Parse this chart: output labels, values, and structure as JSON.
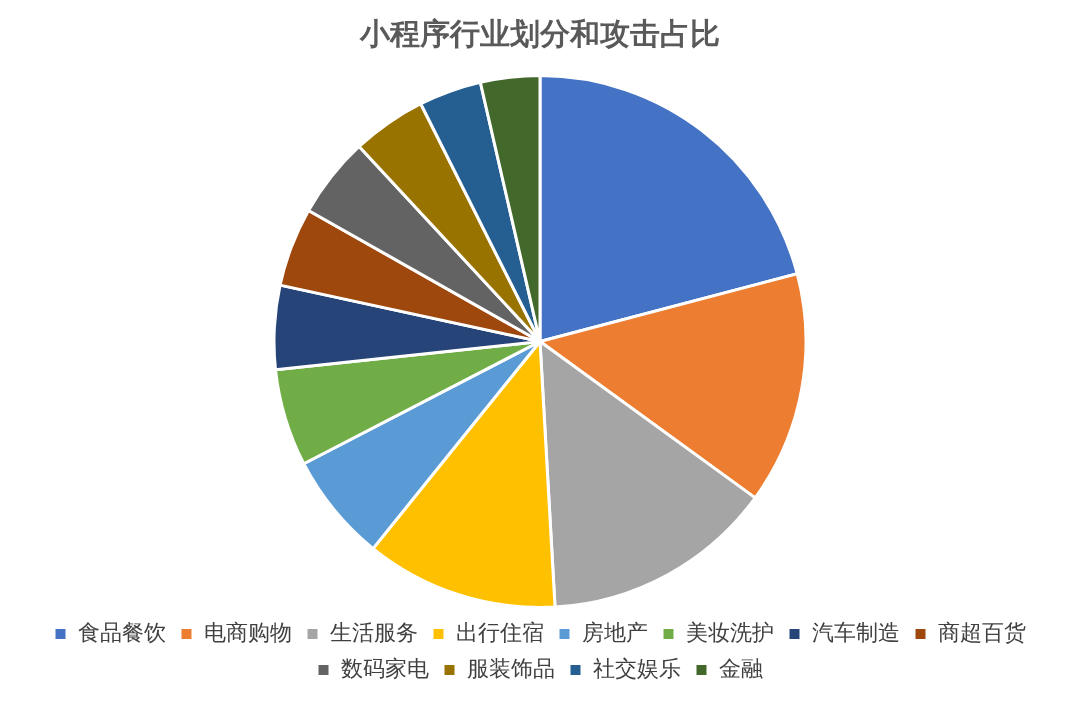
{
  "chart_data": {
    "type": "pie",
    "title": "小程序行业划分和攻击占比",
    "categories": [
      "食品餐饮",
      "电商购物",
      "生活服务",
      "出行住宿",
      "房地产",
      "美妆洗护",
      "汽车制造",
      "商超百货",
      "数码家电",
      "服装饰品",
      "社交娱乐",
      "金融"
    ],
    "values": [
      20.9,
      14.1,
      14.1,
      11.7,
      6.6,
      5.9,
      5.1,
      4.8,
      4.9,
      4.5,
      3.8,
      3.6
    ],
    "colors": [
      "#4472c4",
      "#ed7d31",
      "#a5a5a5",
      "#ffc000",
      "#5b9bd5",
      "#70ad47",
      "#264478",
      "#9e480e",
      "#636363",
      "#997300",
      "#255e91",
      "#43682b"
    ],
    "legend": "bottom"
  }
}
